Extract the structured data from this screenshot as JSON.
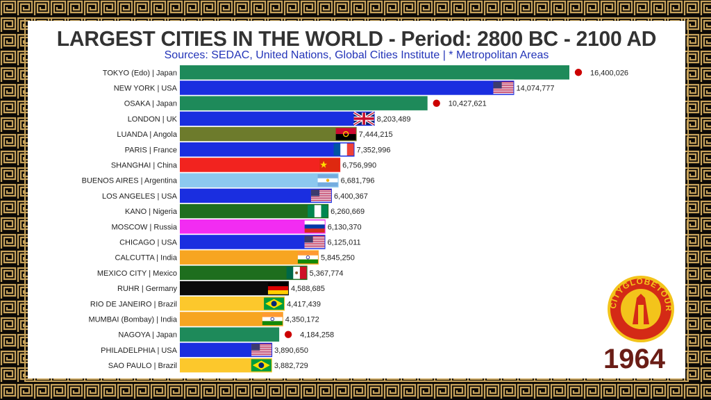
{
  "header": {
    "title": "LARGEST CITIES IN THE WORLD - Period: 2800 BC - 2100 AD",
    "subtitle": "Sources: SEDAC, United Nations, Global Cities Institute | * Metropolitan Areas"
  },
  "year": "1964",
  "logo": {
    "text": "CITYGLOBETOUR",
    "icon": "city-landmarks-emblem"
  },
  "chart_data": {
    "type": "bar",
    "orientation": "horizontal",
    "xlim": [
      0,
      16400026
    ],
    "categories": [
      "TOKYO (Edo) | Japan",
      "NEW YORK | USA",
      "OSAKA | Japan",
      "LONDON | UK",
      "LUANDA | Angola",
      "PARIS | France",
      "SHANGHAI | China",
      "BUENOS AIRES | Argentina",
      "LOS ANGELES | USA",
      "KANO | Nigeria",
      "MOSCOW | Russia",
      "CHICAGO | USA",
      "CALCUTTA | India",
      "MEXICO CITY | Mexico",
      "RUHR | Germany",
      "RIO DE JANEIRO | Brazil",
      "MUMBAI (Bombay) | India",
      "NAGOYA | Japan",
      "PHILADELPHIA | USA",
      "SAO PAULO | Brazil"
    ],
    "values": [
      16400026,
      14074777,
      10427621,
      8203489,
      7444215,
      7352996,
      6756990,
      6681796,
      6400367,
      6260669,
      6130370,
      6125011,
      5845250,
      5367774,
      4588685,
      4417439,
      4350172,
      4184258,
      3890650,
      3882729
    ],
    "value_labels": [
      "16,400,026",
      "14,074,777",
      "10,427,621",
      "8,203,489",
      "7,444,215",
      "7,352,996",
      "6,756,990",
      "6,681,796",
      "6,400,367",
      "6,260,669",
      "6,130,370",
      "6,125,011",
      "5,845,250",
      "5,367,774",
      "4,588,685",
      "4,417,439",
      "4,350,172",
      "4,184,258",
      "3,890,650",
      "3,882,729"
    ],
    "colors": [
      "#1e8a5a",
      "#1a2ee0",
      "#1e8a5a",
      "#1a2ee0",
      "#6d7b2c",
      "#1a2ee0",
      "#f2231f",
      "#8cc8ef",
      "#1a2ee0",
      "#1e6e1e",
      "#f22cf2",
      "#1a2ee0",
      "#f7a521",
      "#1e6e1e",
      "#0a0a0a",
      "#fcc82c",
      "#f7a521",
      "#1e8a5a",
      "#1a2ee0",
      "#fcc82c"
    ],
    "flags": [
      "japan",
      "usa",
      "japan",
      "uk",
      "angola",
      "france",
      "china",
      "argentina",
      "usa",
      "nigeria",
      "russia",
      "usa",
      "india",
      "mexico",
      "germany",
      "brazil",
      "india",
      "japan",
      "usa",
      "brazil"
    ]
  }
}
